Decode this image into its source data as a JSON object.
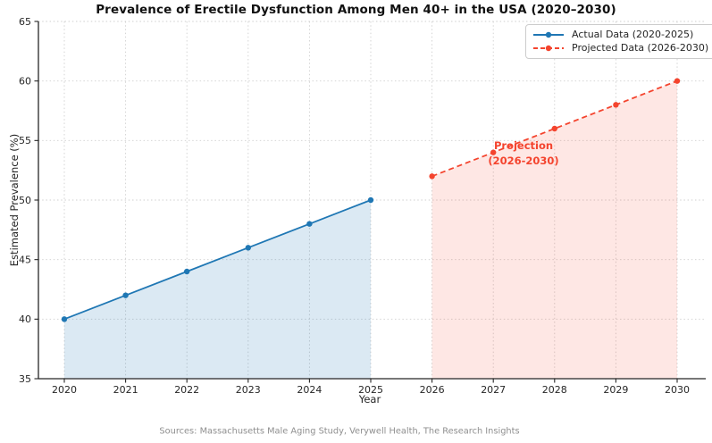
{
  "chart": {
    "title": "Prevalence of Erectile Dysfunction Among Men 40+ in the USA (2020–2030)",
    "xlabel": "Year",
    "ylabel": "Estimated Prevalence (%)",
    "source": "Sources: Massachusetts Male Aging Study, Verywell Health, The Research Insights",
    "annotation": {
      "line1": "Projection",
      "line2": "(2026-2030)",
      "color": "#f4442e"
    },
    "legend": {
      "items": [
        {
          "label": "Actual Data (2020-2025)"
        },
        {
          "label": "Projected Data (2026-2030)"
        }
      ]
    },
    "colors": {
      "actual": "#1f77b4",
      "projected": "#f4442e",
      "grid": "#cfcfcf",
      "axis": "#262626",
      "tick_text": "#262626"
    }
  },
  "chart_data": {
    "type": "line",
    "title": "Prevalence of Erectile Dysfunction Among Men 40+ in the USA (2020–2030)",
    "xlabel": "Year",
    "ylabel": "Estimated Prevalence (%)",
    "xticks": [
      2020,
      2021,
      2022,
      2023,
      2024,
      2025,
      2026,
      2027,
      2028,
      2029,
      2030
    ],
    "yticks": [
      35,
      40,
      45,
      50,
      55,
      60,
      65
    ],
    "ylim": [
      35,
      65
    ],
    "grid": true,
    "legend_position": "upper right",
    "series": [
      {
        "name": "Actual Data (2020-2025)",
        "x": [
          2020,
          2021,
          2022,
          2023,
          2024,
          2025
        ],
        "values": [
          40,
          42,
          44,
          46,
          48,
          50
        ],
        "color": "#1f77b4",
        "style": "solid",
        "marker": "circle",
        "area_fill": true,
        "fill_opacity": 0.16
      },
      {
        "name": "Projected Data (2026-2030)",
        "x": [
          2026,
          2027,
          2028,
          2029,
          2030
        ],
        "values": [
          52,
          54,
          56,
          58,
          60
        ],
        "color": "#f4442e",
        "style": "dashed",
        "marker": "circle",
        "area_fill": true,
        "fill_opacity": 0.13
      }
    ]
  }
}
